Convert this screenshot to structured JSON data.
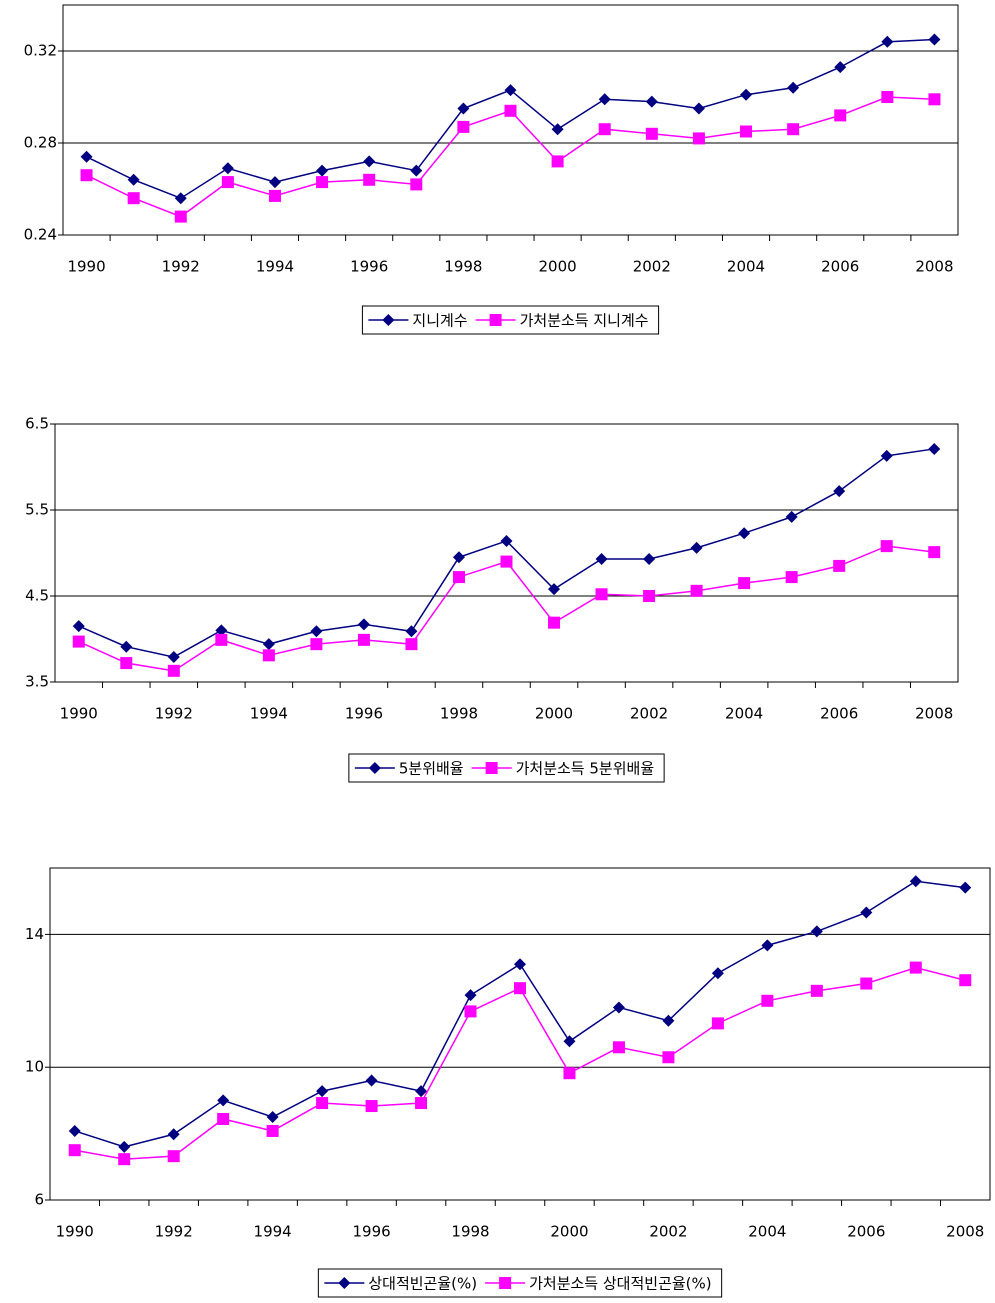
{
  "chart_data": [
    {
      "type": "line",
      "categories": [
        "1990",
        null,
        "1992",
        null,
        "1994",
        null,
        "1996",
        null,
        "1998",
        null,
        "2000",
        null,
        "2002",
        null,
        "2004",
        null,
        "2006",
        null,
        "2008"
      ],
      "ylim": [
        0.24,
        0.34
      ],
      "yticks": [
        0.24,
        0.28,
        0.32
      ],
      "grid": true,
      "legend": "bottom",
      "series": [
        {
          "name": "지니계수",
          "color": "#000080",
          "marker": "diamond",
          "values": [
            0.274,
            0.264,
            0.256,
            0.269,
            0.263,
            0.268,
            0.272,
            0.268,
            0.295,
            0.303,
            0.286,
            0.299,
            0.298,
            0.295,
            0.301,
            0.304,
            0.313,
            0.324,
            0.325
          ]
        },
        {
          "name": "가처분소득 지니계수",
          "color": "#ff00ff",
          "marker": "square",
          "values": [
            0.266,
            0.256,
            0.248,
            0.263,
            0.257,
            0.263,
            0.264,
            0.262,
            0.287,
            0.294,
            0.272,
            0.286,
            0.284,
            0.282,
            0.285,
            0.286,
            0.292,
            0.3,
            0.299
          ]
        }
      ]
    },
    {
      "type": "line",
      "categories": [
        "1990",
        null,
        "1992",
        null,
        "1994",
        null,
        "1996",
        null,
        "1998",
        null,
        "2000",
        null,
        "2002",
        null,
        "2004",
        null,
        "2006",
        null,
        "2008"
      ],
      "ylim": [
        3.5,
        6.5
      ],
      "yticks": [
        3.5,
        4.5,
        5.5,
        6.5
      ],
      "grid": true,
      "legend": "bottom",
      "series": [
        {
          "name": "5분위배율",
          "color": "#000080",
          "marker": "diamond",
          "values": [
            4.15,
            3.91,
            3.79,
            4.1,
            3.94,
            4.09,
            4.17,
            4.09,
            4.95,
            5.14,
            4.58,
            4.93,
            4.93,
            5.06,
            5.23,
            5.42,
            5.72,
            6.13,
            6.21
          ]
        },
        {
          "name": "가처분소득 5분위배율",
          "color": "#ff00ff",
          "marker": "square",
          "values": [
            3.97,
            3.72,
            3.63,
            3.99,
            3.81,
            3.94,
            3.99,
            3.94,
            4.72,
            4.9,
            4.19,
            4.52,
            4.5,
            4.56,
            4.65,
            4.72,
            4.85,
            5.08,
            5.01
          ]
        }
      ]
    },
    {
      "type": "line",
      "categories": [
        "1990",
        null,
        "1992",
        null,
        "1994",
        null,
        "1996",
        null,
        "1998",
        null,
        "2000",
        null,
        "2002",
        null,
        "2004",
        null,
        "2006",
        null,
        "2008"
      ],
      "ylim": [
        6,
        16
      ],
      "yticks": [
        6,
        10,
        14
      ],
      "grid": true,
      "legend": "bottom",
      "series": [
        {
          "name": "상대적빈곤율(%)",
          "color": "#000080",
          "marker": "diamond",
          "values": [
            8.08,
            7.6,
            7.98,
            9.0,
            8.5,
            9.28,
            9.6,
            9.28,
            12.17,
            13.1,
            10.78,
            11.8,
            11.4,
            12.83,
            13.67,
            14.09,
            14.66,
            15.6,
            15.41
          ]
        },
        {
          "name": "가처분소득 상대적빈곤율(%)",
          "color": "#ff00ff",
          "marker": "square",
          "values": [
            7.5,
            7.23,
            7.32,
            8.44,
            8.08,
            8.92,
            8.83,
            8.92,
            11.68,
            12.38,
            9.82,
            10.6,
            10.3,
            11.32,
            12.0,
            12.3,
            12.52,
            13.0,
            12.62
          ]
        }
      ]
    }
  ]
}
